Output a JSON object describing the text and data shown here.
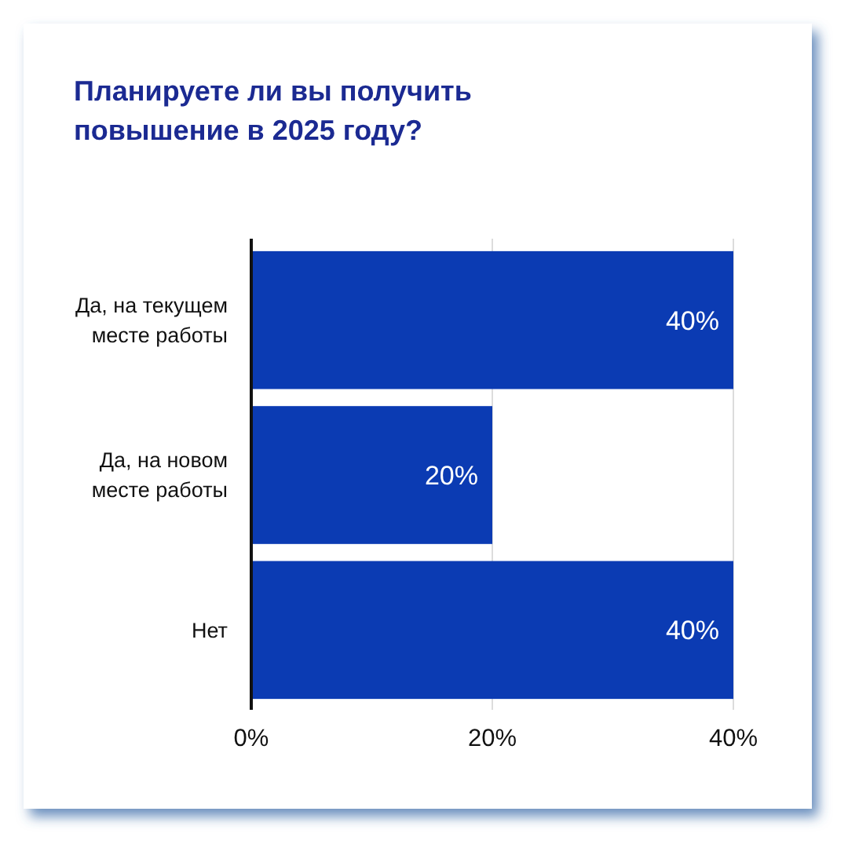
{
  "chart_data": {
    "type": "bar",
    "orientation": "horizontal",
    "title": "Планируете ли вы получить повышение в 2025 году?",
    "categories": [
      "Да, на текущем месте работы",
      "Да, на новом месте работы",
      "Нет"
    ],
    "values": [
      40,
      20,
      40
    ],
    "color": "#0b3bb3",
    "value_labels": [
      "40%",
      "20%",
      "40%"
    ],
    "xlim": [
      0,
      40
    ],
    "xticks": [
      {
        "value": 0,
        "label": "0%"
      },
      {
        "value": 20,
        "label": "20%"
      },
      {
        "value": 40,
        "label": "40%"
      }
    ],
    "grid": "x"
  }
}
